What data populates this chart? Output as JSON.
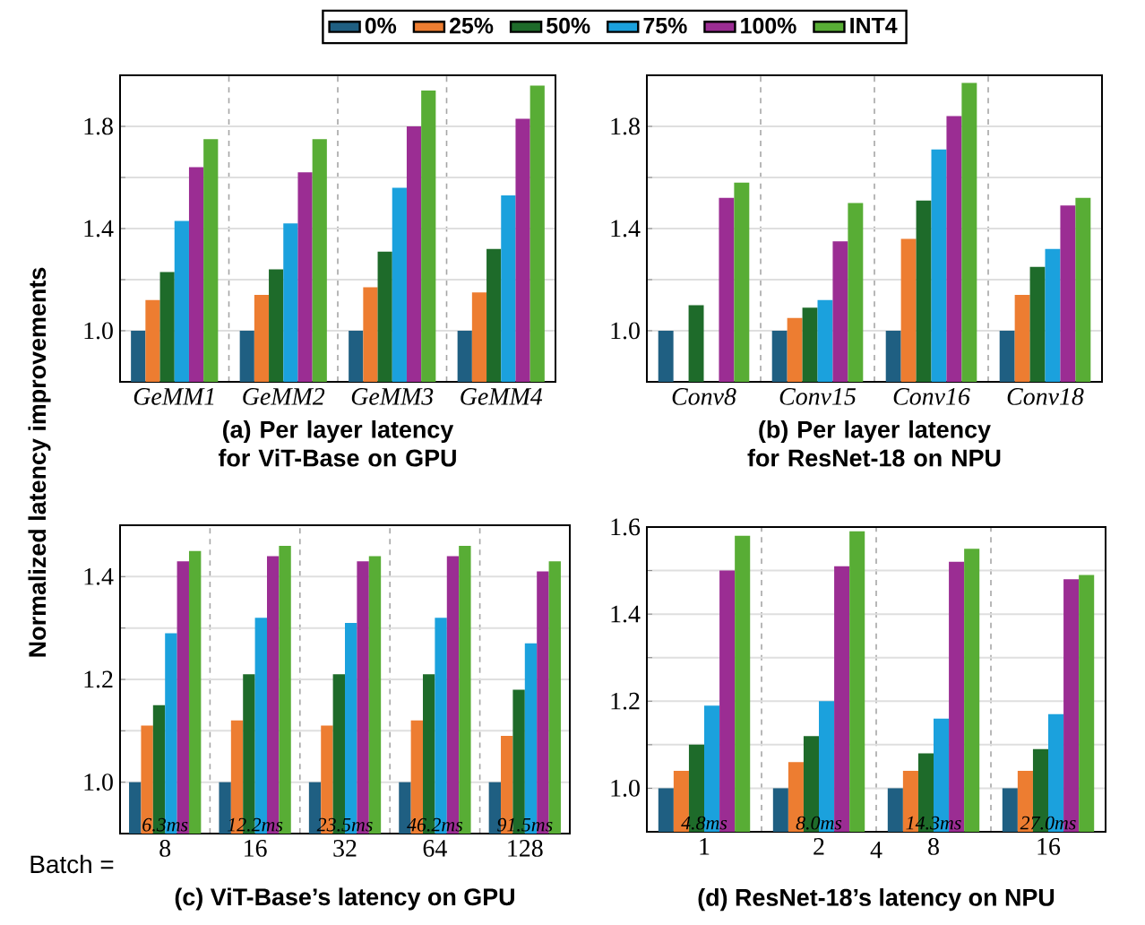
{
  "chart_data": [
    {
      "type": "bar",
      "title": "(a) Per layer latency for ViT-Base on GPU",
      "ylabel": "Normalized latency improvements",
      "categories": [
        "GeMM1",
        "GeMM2",
        "GeMM3",
        "GeMM4"
      ],
      "ylim": [
        0.8,
        2.0
      ],
      "yticks": [
        {
          "value": 1.0,
          "label": "1.0"
        },
        {
          "value": 1.2,
          "label": null
        },
        1.4,
        {
          "value": 1.6,
          "label": null
        },
        1.8
      ],
      "grid": true,
      "legend": "top",
      "series": [
        {
          "name": "0%",
          "color": "#1f5f82",
          "values": [
            1.0,
            1.0,
            1.0,
            1.0
          ]
        },
        {
          "name": "25%",
          "color": "#ed7d31",
          "values": [
            1.12,
            1.14,
            1.17,
            1.15
          ]
        },
        {
          "name": "50%",
          "color": "#1e6b2a",
          "values": [
            1.23,
            1.24,
            1.31,
            1.32
          ]
        },
        {
          "name": "75%",
          "color": "#1ba1dd",
          "values": [
            1.43,
            1.42,
            1.56,
            1.53
          ]
        },
        {
          "name": "100%",
          "color": "#9b2d93",
          "values": [
            1.64,
            1.62,
            1.8,
            1.83
          ]
        },
        {
          "name": "INT4",
          "color": "#58ad35",
          "values": [
            1.75,
            1.75,
            1.94,
            1.96
          ]
        }
      ]
    },
    {
      "type": "bar",
      "title": "(b) Per layer latency for ResNet-18 on NPU",
      "categories": [
        "Conv8",
        "Conv15",
        "Conv16",
        "Conv18"
      ],
      "ylim": [
        0.8,
        2.0
      ],
      "yticks": [
        {
          "value": 1.0,
          "label": "1.0"
        },
        {
          "value": 1.2,
          "label": null
        },
        1.4,
        {
          "value": 1.6,
          "label": null
        },
        1.8
      ],
      "grid": true,
      "series": [
        {
          "color": "#1f5f82",
          "values": [
            1.0,
            1.0,
            1.0,
            1.0
          ]
        },
        {
          "color": "#ed7d31",
          "values": [
            null,
            1.05,
            1.36,
            1.14
          ]
        },
        {
          "color": "#1e6b2a",
          "values": [
            1.1,
            1.09,
            1.51,
            1.25
          ]
        },
        {
          "color": "#1ba1dd",
          "values": [
            null,
            1.12,
            1.71,
            1.32
          ]
        },
        {
          "color": "#9b2d93",
          "values": [
            1.52,
            1.35,
            1.84,
            1.49
          ]
        },
        {
          "color": "#58ad35",
          "values": [
            1.58,
            1.5,
            1.97,
            1.52
          ]
        }
      ]
    },
    {
      "type": "bar",
      "title": "(c) ViT-Base’s latency on GPU",
      "xlabel": "Batch =",
      "categories": [
        "8",
        "16",
        "32",
        "64",
        "128"
      ],
      "ylim": [
        0.9,
        1.5
      ],
      "yticks": [
        {
          "value": 1.0,
          "label": "1.0"
        },
        {
          "value": 1.1,
          "label": null
        },
        1.2,
        {
          "value": 1.3,
          "label": null
        },
        1.4
      ],
      "grid": true,
      "annotations": [
        "6.3ms",
        "12.2ms",
        "23.5ms",
        "46.2ms",
        "91.5ms"
      ],
      "series": [
        {
          "color": "#1f5f82",
          "values": [
            1.0,
            1.0,
            1.0,
            1.0,
            1.0
          ]
        },
        {
          "color": "#ed7d31",
          "values": [
            1.11,
            1.12,
            1.11,
            1.12,
            1.09
          ]
        },
        {
          "color": "#1e6b2a",
          "values": [
            1.15,
            1.21,
            1.21,
            1.21,
            1.18
          ]
        },
        {
          "color": "#1ba1dd",
          "values": [
            1.29,
            1.32,
            1.31,
            1.32,
            1.27
          ]
        },
        {
          "color": "#9b2d93",
          "values": [
            1.43,
            1.44,
            1.43,
            1.44,
            1.41
          ]
        },
        {
          "color": "#58ad35",
          "values": [
            1.45,
            1.46,
            1.44,
            1.46,
            1.43
          ]
        }
      ]
    },
    {
      "type": "bar",
      "title": "(d) ResNet-18’s latency on NPU",
      "categories": [
        "1",
        "2",
        "8",
        "16"
      ],
      "ylim": [
        0.9,
        1.6
      ],
      "yticks": [
        {
          "value": 1.0,
          "label": "1.0"
        },
        {
          "value": 1.1,
          "label": null
        },
        1.2,
        {
          "value": 1.3,
          "label": null
        },
        1.4,
        {
          "value": 1.5,
          "label": null
        },
        1.6
      ],
      "grid": true,
      "annotations": [
        "4.8ms",
        "8.0ms",
        "14.3ms",
        "27.0ms",
        "4"
      ],
      "series": [
        {
          "color": "#1f5f82",
          "values": [
            1.0,
            1.0,
            1.0,
            1.0
          ]
        },
        {
          "color": "#ed7d31",
          "values": [
            1.04,
            1.06,
            1.04,
            1.04
          ]
        },
        {
          "color": "#1e6b2a",
          "values": [
            1.1,
            1.12,
            1.08,
            1.09
          ]
        },
        {
          "color": "#1ba1dd",
          "values": [
            1.19,
            1.2,
            1.16,
            1.17
          ]
        },
        {
          "color": "#9b2d93",
          "values": [
            1.5,
            1.51,
            1.52,
            1.48
          ]
        },
        {
          "color": "#58ad35",
          "values": [
            1.58,
            1.59,
            1.55,
            1.49
          ]
        }
      ]
    }
  ]
}
